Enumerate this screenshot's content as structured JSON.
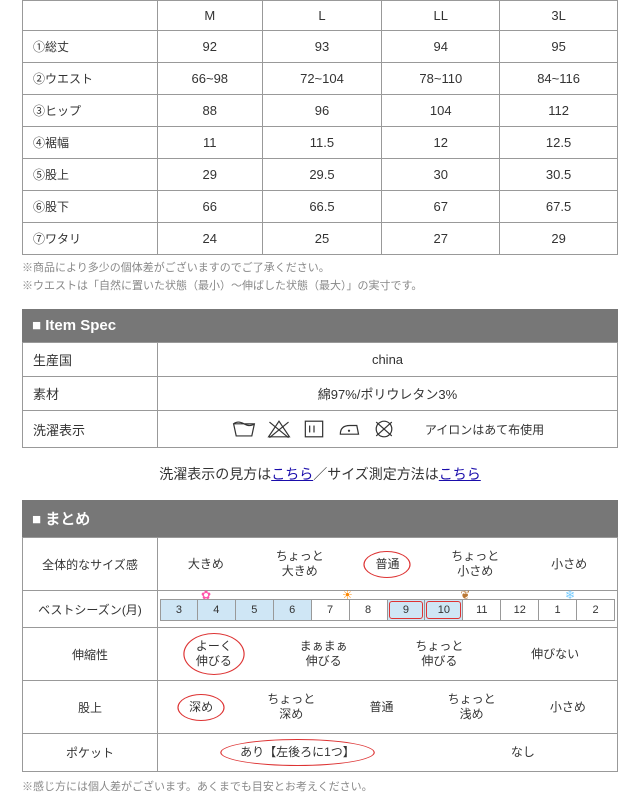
{
  "sizeTable": {
    "headers": [
      "",
      "M",
      "L",
      "LL",
      "3L"
    ],
    "rows": [
      {
        "label": "①総丈",
        "vals": [
          "92",
          "93",
          "94",
          "95"
        ]
      },
      {
        "label": "②ウエスト",
        "vals": [
          "66~98",
          "72~104",
          "78~110",
          "84~116"
        ]
      },
      {
        "label": "③ヒップ",
        "vals": [
          "88",
          "96",
          "104",
          "112"
        ]
      },
      {
        "label": "④裾幅",
        "vals": [
          "11",
          "11.5",
          "12",
          "12.5"
        ]
      },
      {
        "label": "⑤股上",
        "vals": [
          "29",
          "29.5",
          "30",
          "30.5"
        ]
      },
      {
        "label": "⑥股下",
        "vals": [
          "66",
          "66.5",
          "67",
          "67.5"
        ]
      },
      {
        "label": "⑦ワタリ",
        "vals": [
          "24",
          "25",
          "27",
          "29"
        ]
      }
    ],
    "note1": "※商品により多少の個体差がございますのでご了承ください。",
    "note2": "※ウエストは「自然に置いた状態（最小）～伸ばした状態（最大）」の実寸です。"
  },
  "spec": {
    "title": "Item Spec",
    "rows": {
      "country": {
        "label": "生産国",
        "value": "china"
      },
      "material": {
        "label": "素材",
        "value": "綿97%/ポリウレタン3%"
      },
      "wash": {
        "label": "洗濯表示",
        "note": "アイロンはあて布使用"
      }
    }
  },
  "links": {
    "pre": "洗濯表示の見方は",
    "link1": "こちら",
    "sep": "／サイズ測定方法は",
    "link2": "こちら"
  },
  "summary": {
    "title": "まとめ",
    "rows": {
      "fit": {
        "label": "全体的なサイズ感",
        "opts": [
          "大きめ",
          "ちょっと\n大きめ",
          "普通",
          "ちょっと\n小さめ",
          "小さめ"
        ],
        "selected": 2
      },
      "season": {
        "label": "ベストシーズン(月)",
        "months": [
          "3",
          "4",
          "5",
          "6",
          "7",
          "8",
          "9",
          "10",
          "11",
          "12",
          "1",
          "2"
        ],
        "highlight": [
          0,
          1,
          2,
          3,
          6,
          7
        ],
        "now": [
          6,
          7
        ]
      },
      "stretch": {
        "label": "伸縮性",
        "opts": [
          "よーく\n伸びる",
          "まぁまぁ\n伸びる",
          "ちょっと\n伸びる",
          "伸びない"
        ],
        "selected": 0
      },
      "rise": {
        "label": "股上",
        "opts": [
          "深め",
          "ちょっと\n深め",
          "普通",
          "ちょっと\n浅め",
          "小さめ"
        ],
        "selected": 0
      },
      "pocket": {
        "label": "ポケット",
        "opts": [
          "あり【左後ろに1つ】",
          "なし"
        ],
        "selected": 0
      }
    },
    "footnote": "※感じ方には個人差がございます。あくまでも目安とお考えください。"
  },
  "colors": {
    "highlight": "#cfe6f5",
    "circle": "#d33",
    "headerBg": "#777777"
  }
}
